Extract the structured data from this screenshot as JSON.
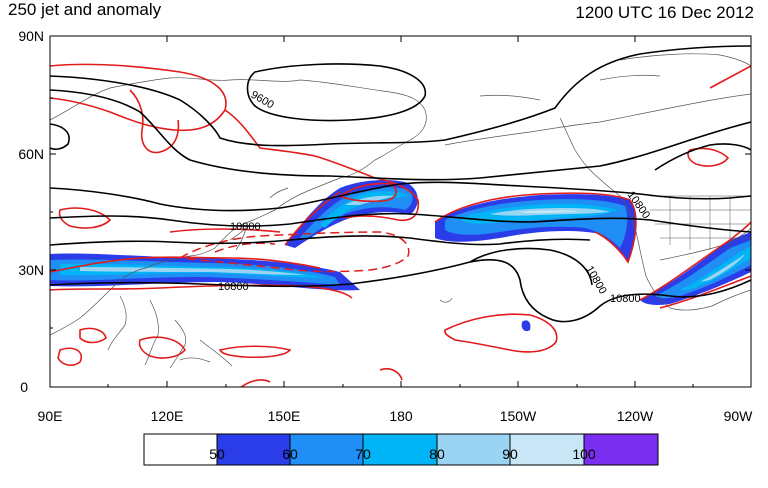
{
  "title": "250 jet and anomaly",
  "datetime": "1200 UTC 16 Dec 2012",
  "y_ticks": [
    "90N",
    "60N",
    "30N",
    "0"
  ],
  "x_ticks": [
    "90E",
    "120E",
    "150E",
    "180",
    "150W",
    "120W",
    "90W"
  ],
  "contour_labels": [
    "9600",
    "10800",
    "10800",
    "10800",
    "10800",
    "10800"
  ],
  "colorbar": {
    "labels": [
      "50",
      "60",
      "70",
      "80",
      "90",
      "100"
    ],
    "colors": [
      "#ffffff",
      "#2b3de8",
      "#1f8ef5",
      "#00b4f5",
      "#9ad4f2",
      "#c9e6f7",
      "#7a2ff0"
    ]
  },
  "colors": {
    "height_contour": "#000000",
    "anomaly_contour": "#e21b1b",
    "coastline": "#555555"
  }
}
